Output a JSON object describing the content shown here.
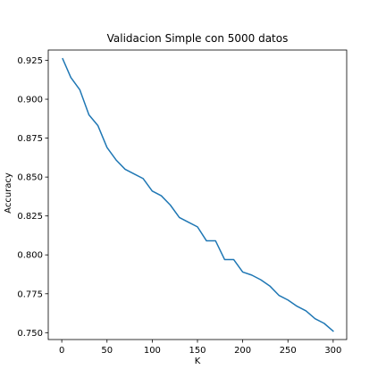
{
  "chart_data": {
    "type": "line",
    "title": "Validacion Simple con 5000 datos",
    "xlabel": "K",
    "ylabel": "Accuracy",
    "xlim": [
      -14.95,
      314.95
    ],
    "ylim": [
      0.7456,
      0.9316
    ],
    "xticks": [
      0,
      50,
      100,
      150,
      200,
      250,
      300
    ],
    "yticks": [
      0.75,
      0.775,
      0.8,
      0.825,
      0.85,
      0.875,
      0.9,
      0.925
    ],
    "xtick_labels": [
      "0",
      "50",
      "100",
      "150",
      "200",
      "250",
      "300"
    ],
    "ytick_labels": [
      "0.750",
      "0.775",
      "0.800",
      "0.825",
      "0.850",
      "0.875",
      "0.900",
      "0.925"
    ],
    "grid": false,
    "series": [
      {
        "color": "#1f77b4",
        "x": [
          1,
          10,
          20,
          30,
          40,
          50,
          60,
          70,
          80,
          90,
          100,
          110,
          120,
          130,
          140,
          150,
          160,
          170,
          180,
          190,
          200,
          210,
          220,
          230,
          240,
          250,
          260,
          270,
          280,
          290,
          300
        ],
        "y": [
          0.926,
          0.914,
          0.906,
          0.89,
          0.883,
          0.869,
          0.861,
          0.855,
          0.852,
          0.849,
          0.841,
          0.838,
          0.832,
          0.824,
          0.821,
          0.818,
          0.809,
          0.809,
          0.797,
          0.797,
          0.789,
          0.787,
          0.784,
          0.78,
          0.774,
          0.771,
          0.767,
          0.764,
          0.759,
          0.756,
          0.751
        ]
      }
    ]
  }
}
